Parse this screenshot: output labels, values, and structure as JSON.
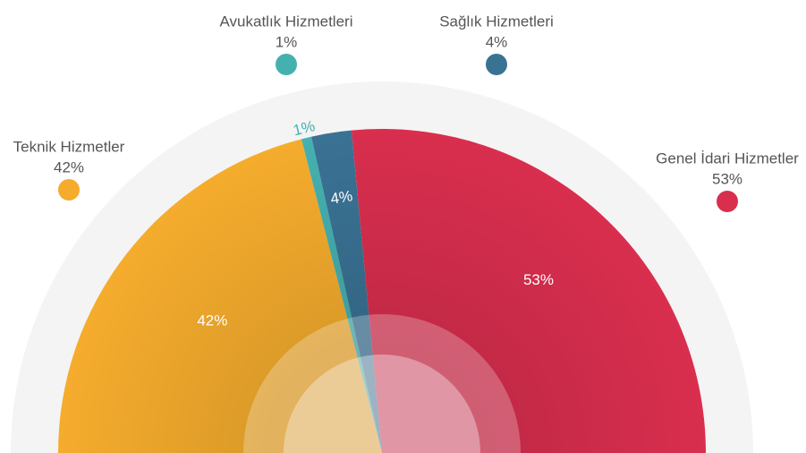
{
  "chart_data": {
    "type": "semipie",
    "categories": [
      "Teknik Hizmetler",
      "Avukatlık Hizmetleri",
      "Sağlık Hizmetleri",
      "Genel İdari Hizmetler"
    ],
    "values": [
      42,
      1,
      4,
      53
    ],
    "value_labels": [
      "42%",
      "1%",
      "4%",
      "53%"
    ],
    "colors": [
      "#f5ac2d",
      "#45b0b0",
      "#3a7294",
      "#d92e4e"
    ]
  }
}
